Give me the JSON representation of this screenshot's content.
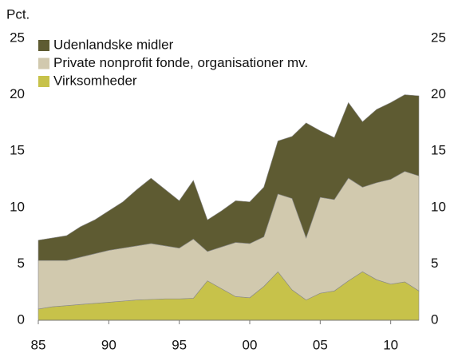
{
  "chart_data": {
    "type": "stacked_area",
    "y_label": "Pct.",
    "x": [
      1985,
      1986,
      1987,
      1988,
      1989,
      1990,
      1991,
      1992,
      1993,
      1994,
      1995,
      1996,
      1997,
      1998,
      1999,
      2000,
      2001,
      2002,
      2003,
      2004,
      2005,
      2006,
      2007,
      2008,
      2009,
      2010,
      2011,
      2012
    ],
    "xlim": [
      1985,
      2012
    ],
    "xticks": [
      {
        "value": 1985,
        "label": "85"
      },
      {
        "value": 1990,
        "label": "90"
      },
      {
        "value": 1995,
        "label": "95"
      },
      {
        "value": 2000,
        "label": "00"
      },
      {
        "value": 2005,
        "label": "05"
      },
      {
        "value": 2010,
        "label": "10"
      }
    ],
    "ylim": [
      0,
      25
    ],
    "yticks": [
      0,
      5,
      10,
      15,
      20,
      25
    ],
    "y2lim": [
      0,
      25
    ],
    "y2ticks": [
      0,
      5,
      10,
      15,
      20,
      25
    ],
    "legend": "upper left",
    "series": [
      {
        "name": "Virksomheder",
        "color": "#c7c24a",
        "values": [
          1.0,
          1.2,
          1.3,
          1.4,
          1.5,
          1.6,
          1.7,
          1.8,
          1.85,
          1.9,
          1.9,
          1.95,
          3.5,
          2.8,
          2.1,
          2.0,
          3.0,
          4.3,
          2.7,
          1.8,
          2.4,
          2.6,
          3.5,
          4.3,
          3.6,
          3.2,
          3.4,
          2.6
        ]
      },
      {
        "name": "Private nonprofit fonde, organisationer mv.",
        "color": "#d1c9ae",
        "values": [
          4.3,
          4.1,
          4.0,
          4.2,
          4.4,
          4.6,
          4.7,
          4.8,
          4.95,
          4.7,
          4.5,
          5.25,
          2.6,
          3.7,
          4.8,
          4.8,
          4.4,
          6.9,
          8.1,
          5.5,
          8.5,
          8.1,
          9.1,
          7.5,
          8.6,
          9.3,
          9.8,
          10.2
        ]
      },
      {
        "name": "Udenlandske midler",
        "color": "#5e5b32",
        "values": [
          1.8,
          2.0,
          2.2,
          2.7,
          3.0,
          3.5,
          4.1,
          5.0,
          5.8,
          5.0,
          4.2,
          5.2,
          2.8,
          3.2,
          3.7,
          3.7,
          4.4,
          4.7,
          5.5,
          10.2,
          5.9,
          5.5,
          6.7,
          5.8,
          6.5,
          6.8,
          6.8,
          7.1
        ]
      }
    ]
  }
}
